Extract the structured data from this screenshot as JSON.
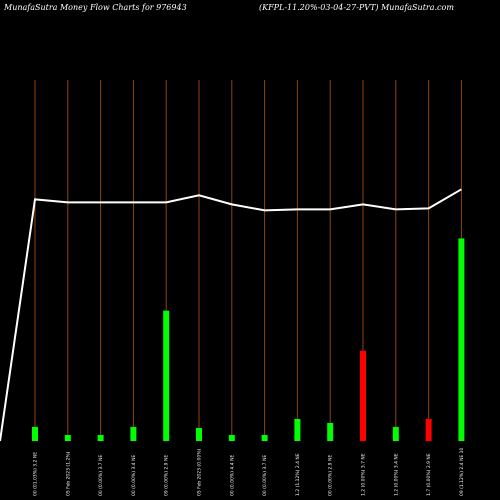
{
  "header": {
    "left": "MunafaSutra  Money Flow  Charts for 976943",
    "right": "(KFPL-11.20%-03-04-27-PVT) MunafaSutra.com"
  },
  "colors": {
    "background": "#000000",
    "text": "#ffffff",
    "gridline": "#8B4513",
    "inflow_bar": "#00ff00",
    "outflow_bar": "#ff0000",
    "line": "#ffffff"
  },
  "chart_data": {
    "type": "bar",
    "title": "",
    "grid": true,
    "categories": [
      "00 (01.03%) 3.2 NE",
      "05 Feb 2023 (1.2%)",
      "00 (0.00%) 3.7 NE",
      "00 (0.00%) 3.4 NE",
      "09 (0.00%) 2.9 NE",
      "05 Feb 2023 (0.00%)",
      "00 (0.00%) 4.4 NE",
      "00 (0.00%) 3.7 NE",
      "1.2 (1.12%) 2.4 NE",
      "00 (0.00%) 2.9 NE",
      "1.2 (0.00%) 3.7 NE",
      "1.2 (0.00%) 3.4 NE",
      "1.7 (0.00%) 2.9 NE",
      "09 (1.12%) 2.4 NE 10"
    ],
    "series": [
      {
        "type": "bar",
        "values": [
          14,
          6,
          6,
          14,
          130,
          13,
          6,
          6,
          22,
          18,
          90,
          14,
          22,
          202
        ],
        "colors": [
          "#00ff00",
          "#00ff00",
          "#00ff00",
          "#00ff00",
          "#00ff00",
          "#00ff00",
          "#00ff00",
          "#00ff00",
          "#00ff00",
          "#00ff00",
          "#ff0000",
          "#00ff00",
          "#ff0000",
          "#00ff00"
        ]
      },
      {
        "type": "line",
        "start": 0,
        "values": [
          241,
          238,
          238,
          238,
          238,
          245,
          236,
          230,
          231,
          231,
          236,
          231,
          232,
          251
        ]
      }
    ],
    "ylim": [
      0,
      360
    ]
  }
}
